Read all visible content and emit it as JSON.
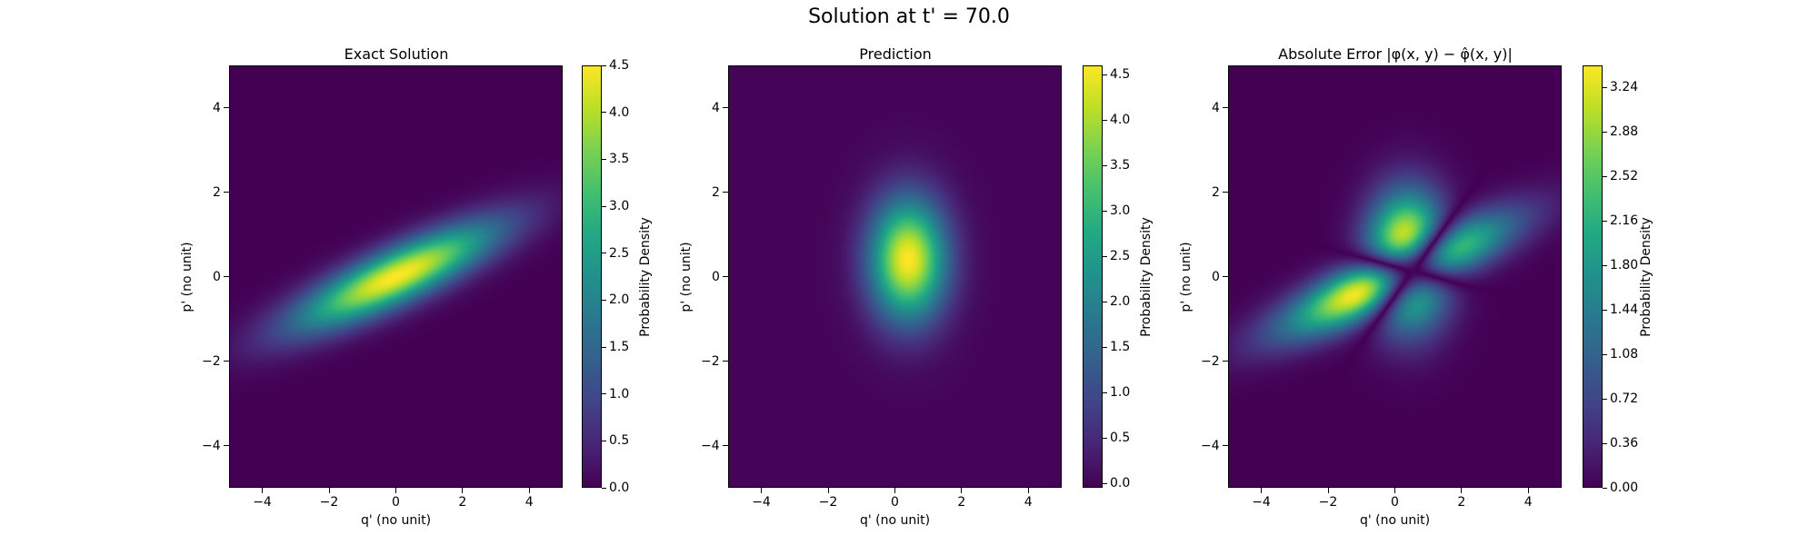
{
  "figure": {
    "suptitle": "Solution at t' = 70.0"
  },
  "colormap": "viridis",
  "chart_data": [
    {
      "type": "heatmap",
      "title": "Exact Solution",
      "xlabel": "q' (no unit)",
      "ylabel": "p' (no unit)",
      "xlim": [
        -5,
        5
      ],
      "ylim": [
        -5,
        5
      ],
      "xticks": [
        -4,
        -2,
        0,
        2,
        4
      ],
      "yticks": [
        -4,
        -2,
        0,
        2,
        4
      ],
      "xtick_labels": [
        "−4",
        "−2",
        "0",
        "2",
        "4"
      ],
      "ytick_labels": [
        "−4",
        "−2",
        "0",
        "2",
        "4"
      ],
      "colorbar": {
        "label": "Probability Density",
        "range": [
          0.0,
          4.5
        ],
        "ticks": [
          0.0,
          0.5,
          1.0,
          1.5,
          2.0,
          2.5,
          3.0,
          3.5,
          4.0,
          4.5
        ],
        "tick_labels": [
          "0.0",
          "0.5",
          "1.0",
          "1.5",
          "2.0",
          "2.5",
          "3.0",
          "3.5",
          "4.0",
          "4.5"
        ]
      },
      "field": {
        "kind": "tilted_gaussian",
        "peak": 4.5,
        "center": [
          0,
          0
        ],
        "major_axis_slope": 0.36,
        "sigma_along": 2.2,
        "sigma_across": 0.45
      }
    },
    {
      "type": "heatmap",
      "title": "Prediction",
      "xlabel": "q' (no unit)",
      "ylabel": "p' (no unit)",
      "xlim": [
        -5,
        5
      ],
      "ylim": [
        -5,
        5
      ],
      "xticks": [
        -4,
        -2,
        0,
        2,
        4
      ],
      "yticks": [
        -4,
        -2,
        0,
        2,
        4
      ],
      "xtick_labels": [
        "−4",
        "−2",
        "0",
        "2",
        "4"
      ],
      "ytick_labels": [
        "−4",
        "−2",
        "0",
        "2",
        "4"
      ],
      "colorbar": {
        "label": "Probability Density",
        "range": [
          -0.05,
          4.6
        ],
        "ticks": [
          0.0,
          0.5,
          1.0,
          1.5,
          2.0,
          2.5,
          3.0,
          3.5,
          4.0,
          4.5
        ],
        "tick_labels": [
          "0.0",
          "0.5",
          "1.0",
          "1.5",
          "2.0",
          "2.5",
          "3.0",
          "3.5",
          "4.0",
          "4.5"
        ]
      },
      "field": {
        "kind": "gaussian",
        "peak": 4.6,
        "center": [
          0.4,
          0.4
        ],
        "sigma_x": 0.8,
        "sigma_y": 1.0
      }
    },
    {
      "type": "heatmap",
      "title": "Absolute Error |φ(x, y) − φ̂(x, y)|",
      "xlabel": "q' (no unit)",
      "ylabel": "p' (no unit)",
      "xlim": [
        -5,
        5
      ],
      "ylim": [
        -5,
        5
      ],
      "xticks": [
        -4,
        -2,
        0,
        2,
        4
      ],
      "yticks": [
        -4,
        -2,
        0,
        2,
        4
      ],
      "xtick_labels": [
        "−4",
        "−2",
        "0",
        "2",
        "4"
      ],
      "ytick_labels": [
        "−4",
        "−2",
        "0",
        "2",
        "4"
      ],
      "colorbar": {
        "label": "Probability Density",
        "range": [
          0.0,
          3.42
        ],
        "ticks": [
          0.0,
          0.36,
          0.72,
          1.08,
          1.44,
          1.8,
          2.16,
          2.52,
          2.88,
          3.24
        ],
        "tick_labels": [
          "0.00",
          "0.36",
          "0.72",
          "1.08",
          "1.44",
          "1.80",
          "2.16",
          "2.52",
          "2.88",
          "3.24"
        ]
      },
      "field": {
        "kind": "abs_difference_of_panels_1_and_2"
      }
    }
  ]
}
